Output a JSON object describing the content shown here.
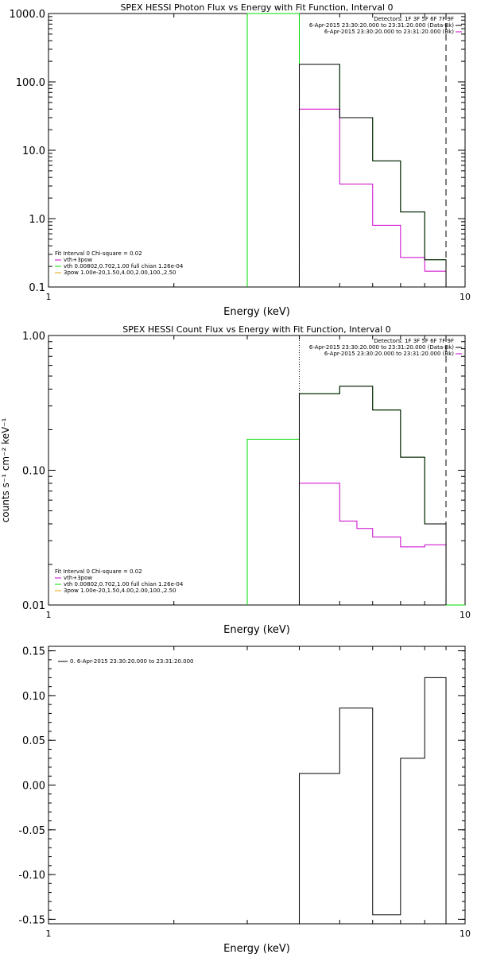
{
  "chart_data": [
    {
      "type": "line",
      "title": "SPEX HESSI Photon Flux vs Energy with Fit Function, Interval 0",
      "xlabel": "Energy (keV)",
      "ylabel": "",
      "xscale": "log",
      "yscale": "log",
      "xlim": [
        1,
        10
      ],
      "ylim": [
        0.1,
        1000
      ],
      "xticks": [
        "1",
        "10"
      ],
      "yticks": [
        "0.1",
        "1.0",
        "10.0",
        "100.0",
        "1000.0"
      ],
      "legend_right": [
        "Detectors: 1F 3F 5F 6F 7F 9F",
        "6-Apr-2015 23:30:20.000 to 23:31:20.000 (Data-Bk)",
        "6-Apr-2015 23:30:20.000 to 23:31:20.000 (Bk)"
      ],
      "legend_left": [
        "Fit Interval 0   Chi-square = 0.02",
        "vth+3pow",
        "vth 0.00802,0.702,1.00  full chian 1.26e-04",
        "3pow 1.00e-20,1.50,4.00,2.00,100.,2.50"
      ],
      "series": [
        {
          "name": "vth 0.00802,0.702,1.00  full chian 1.26e-04",
          "color": "#00dd00",
          "edges": [
            3.0,
            4.0,
            5.0,
            6.0,
            7.0,
            8.0,
            9.0
          ],
          "values": [
            1000,
            180,
            30,
            7,
            1.25,
            0.25
          ]
        },
        {
          "name": "vth+3pow",
          "color": "#cc00cc",
          "edges": [
            4.0,
            5.0,
            6.0,
            7.0,
            8.0,
            9.0
          ],
          "values": [
            40,
            3.2,
            0.8,
            0.27,
            0.17
          ]
        },
        {
          "name": "6-Apr-2015 23:30:20.000 to 23:31:20.000 (Data-Bk)",
          "color": "#000000",
          "edges": [
            4.0,
            5.0,
            6.0,
            7.0,
            8.0,
            9.0
          ],
          "values": [
            180,
            30,
            7,
            1.25,
            0.25
          ]
        }
      ],
      "vlines": [
        {
          "x": 4.0,
          "style": "dotted"
        },
        {
          "x": 9.0,
          "style": "dashed"
        }
      ]
    },
    {
      "type": "line",
      "title": "SPEX HESSI Count Flux vs Energy with Fit Function, Interval 0",
      "xlabel": "Energy (keV)",
      "ylabel": "counts s⁻¹ cm⁻² keV⁻¹",
      "xscale": "log",
      "yscale": "log",
      "xlim": [
        1,
        10
      ],
      "ylim": [
        0.01,
        1
      ],
      "xticks": [
        "1",
        "10"
      ],
      "yticks": [
        "0.01",
        "0.10",
        "1.00"
      ],
      "legend_right": [
        "Detectors: 1F 3F 5F 6F 7F 9F",
        "6-Apr-2015 23:30:20.000 to 23:31:20.000 (Data-Bk)",
        "6-Apr-2015 23:30:20.000 to 23:31:20.000 (Bk)"
      ],
      "legend_left": [
        "Fit Interval 0   Chi-square = 0.02",
        "vth+3pow",
        "vth 0.00802,0.702,1.00  full chian 1.26e-04",
        "3pow 1.00e-20,1.50,4.00,2.00,100.,2.50"
      ],
      "series": [
        {
          "name": "vth 0.00802,0.702,1.00  full chian 1.26e-04",
          "color": "#00dd00",
          "edges": [
            3.0,
            4.0,
            5.0,
            6.0,
            7.0,
            8.0,
            9.0,
            10.0
          ],
          "values": [
            0.17,
            0.37,
            0.42,
            0.28,
            0.125,
            0.04,
            0.01
          ]
        },
        {
          "name": "vth+3pow",
          "color": "#cc00cc",
          "edges": [
            4.0,
            5.0,
            5.5,
            6.0,
            7.0,
            8.0,
            9.0
          ],
          "values": [
            0.08,
            0.042,
            0.037,
            0.032,
            0.027,
            0.028
          ]
        },
        {
          "name": "6-Apr-2015 23:30:20.000 to 23:31:20.000 (Data-Bk)",
          "color": "#000000",
          "edges": [
            4.0,
            5.0,
            6.0,
            7.0,
            8.0,
            9.0
          ],
          "values": [
            0.37,
            0.42,
            0.28,
            0.125,
            0.04
          ]
        }
      ],
      "vlines": [
        {
          "x": 4.0,
          "style": "dotted"
        },
        {
          "x": 9.0,
          "style": "dashed"
        }
      ]
    },
    {
      "type": "line",
      "title": "",
      "xlabel": "Energy (keV)",
      "ylabel": "",
      "xscale": "log",
      "yscale": "linear",
      "xlim": [
        1,
        10
      ],
      "ylim": [
        -0.155,
        0.155
      ],
      "xticks": [
        "1",
        "10"
      ],
      "yticks": [
        "-0.15",
        "-0.10",
        "-0.05",
        "0.00",
        "0.05",
        "0.10",
        "0.15"
      ],
      "legend_right": [],
      "legend_left": [
        "0. 6-Apr-2015 23:30:20.000 to 23:31:20.000"
      ],
      "series": [
        {
          "name": "0. 6-Apr-2015 23:30:20.000 to 23:31:20.000",
          "color": "#000000",
          "edges": [
            4.0,
            5.0,
            6.0,
            7.0,
            8.0,
            9.0
          ],
          "values": [
            0.013,
            0.086,
            -0.145,
            0.03,
            0.12
          ]
        }
      ],
      "vlines": []
    }
  ]
}
